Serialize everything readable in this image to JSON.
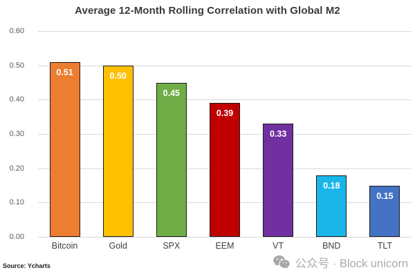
{
  "title": "Average 12-Month Rolling Correlation with Global M2",
  "source_note": "Source: Ycharts",
  "watermark": {
    "icon": "wechat-icon",
    "icon_color": "#a8a8a8",
    "text": "公众号 · Block unicorn"
  },
  "chart_data": {
    "type": "bar",
    "title": "Average 12-Month Rolling Correlation with Global M2",
    "categories": [
      "Bitcoin",
      "Gold",
      "SPX",
      "EEM",
      "VT",
      "BND",
      "TLT"
    ],
    "values": [
      0.51,
      0.5,
      0.45,
      0.39,
      0.33,
      0.18,
      0.15
    ],
    "value_labels": [
      "0.51",
      "0.50",
      "0.45",
      "0.39",
      "0.33",
      "0.18",
      "0.15"
    ],
    "bar_colors": [
      "#ED7D31",
      "#FFC000",
      "#70AD47",
      "#C00000",
      "#7030A0",
      "#1AB6EA",
      "#4472C4"
    ],
    "bar_outline_color": "#1a1a1a",
    "value_label_color": "#ffffff",
    "xlabel": "",
    "ylabel": "",
    "ylim": [
      0.0,
      0.6
    ],
    "yticks": [
      "0.60",
      "0.50",
      "0.40",
      "0.30",
      "0.20",
      "0.10",
      "0.00"
    ],
    "grid": true,
    "gridline_color": "#d9d9d9",
    "legend": false
  }
}
